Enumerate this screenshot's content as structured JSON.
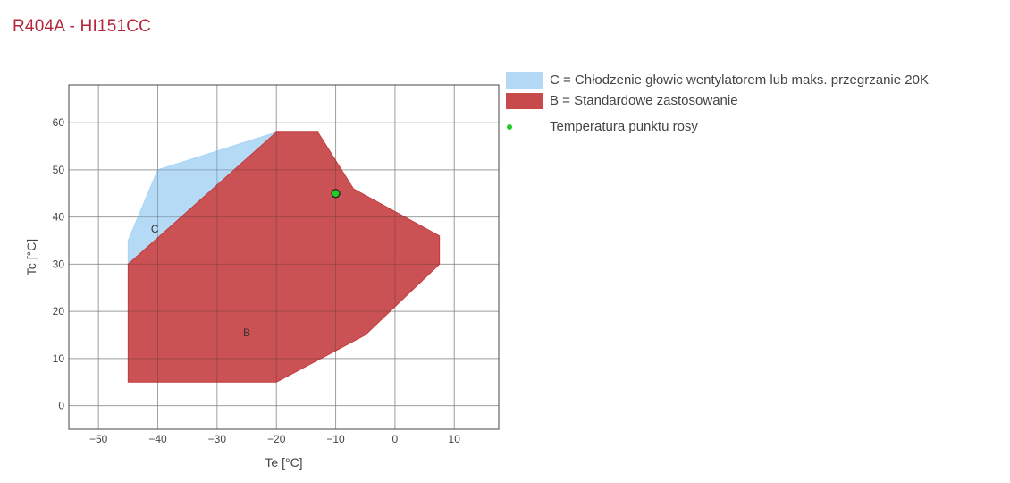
{
  "title": "R404A - HI151CC",
  "legend": {
    "c_label": "C = Chłodzenie głowic wentylatorem lub maks. przegrzanie 20K",
    "b_label": "B = Standardowe zastosowanie",
    "dew_label": "Temperatura punktu rosy"
  },
  "chart_data": {
    "type": "area",
    "xlabel": "Te [°C]",
    "ylabel": "Tc [°C]",
    "xlim": [
      -55,
      17.5
    ],
    "ylim": [
      -5,
      68
    ],
    "xticks": [
      -50,
      -40,
      -30,
      -20,
      -10,
      0,
      10
    ],
    "yticks": [
      0,
      10,
      20,
      30,
      40,
      50,
      60
    ],
    "grid": true,
    "legend_position": "right",
    "series": [
      {
        "name": "C = Chłodzenie głowic wentylatorem lub maks. przegrzanie 20K",
        "region_label": "C",
        "color": "#a8d4f5",
        "label_at": [
          -40.5,
          37.5
        ],
        "polygon": [
          [
            -45,
            30
          ],
          [
            -45,
            35
          ],
          [
            -40,
            50
          ],
          [
            -20,
            58
          ],
          [
            -45,
            30
          ]
        ]
      },
      {
        "name": "B = Standardowe zastosowanie",
        "region_label": "B",
        "color": "#c43a3c",
        "label_at": [
          -25,
          15.5
        ],
        "polygon": [
          [
            -45,
            5
          ],
          [
            -45,
            30
          ],
          [
            -20,
            58
          ],
          [
            -13,
            58
          ],
          [
            -7,
            46
          ],
          [
            7.5,
            36
          ],
          [
            7.5,
            30
          ],
          [
            -5,
            15
          ],
          [
            -20,
            5
          ],
          [
            -45,
            5
          ]
        ]
      },
      {
        "name": "Temperatura punktu rosy",
        "color": "#22cc22",
        "points": [
          [
            -10,
            45
          ]
        ]
      }
    ]
  }
}
